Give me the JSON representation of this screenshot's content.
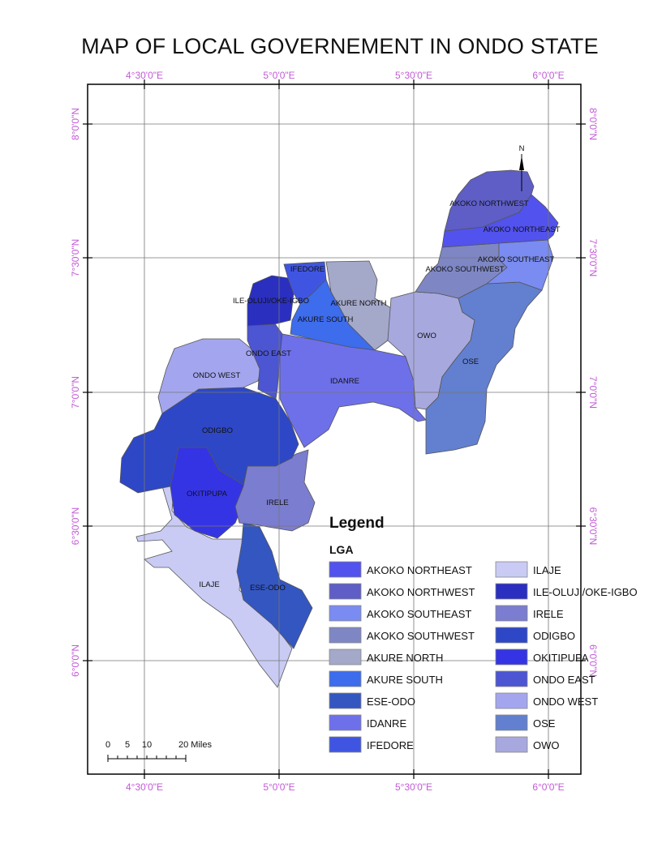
{
  "title": "MAP OF LOCAL GOVERNEMENT IN ONDO STATE",
  "north_arrow": "N",
  "graticule": {
    "lon_labels": [
      "4°30'0\"E",
      "5°0'0\"E",
      "5°30'0\"E",
      "6°0'0\"E"
    ],
    "lat_labels": [
      "8°0'0\"N",
      "7°30'0\"N",
      "7°0'0\"N",
      "6°30'0\"N",
      "6°0'0\"N"
    ]
  },
  "legend": {
    "title": "Legend",
    "subtitle": "LGA",
    "items": [
      {
        "name": "AKOKO NORTHEAST",
        "color": "#5252ee"
      },
      {
        "name": "AKOKO NORTHWEST",
        "color": "#5e5ec6"
      },
      {
        "name": "AKOKO SOUTHEAST",
        "color": "#7a8cf1"
      },
      {
        "name": "AKOKO SOUTHWEST",
        "color": "#7e87c4"
      },
      {
        "name": "AKURE NORTH",
        "color": "#a4a8c9"
      },
      {
        "name": "AKURE SOUTH",
        "color": "#3d6ced"
      },
      {
        "name": "ESE-ODO",
        "color": "#3456c0"
      },
      {
        "name": "IDANRE",
        "color": "#6e70ea"
      },
      {
        "name": "IFEDORE",
        "color": "#3f55e2"
      },
      {
        "name": "ILAJE",
        "color": "#c9cbf4"
      },
      {
        "name": "ILE-OLUJI/OKE-IGBO",
        "color": "#2a2fc0"
      },
      {
        "name": "IRELE",
        "color": "#7b7dd0"
      },
      {
        "name": "ODIGBO",
        "color": "#2d47c6"
      },
      {
        "name": "OKITIPUPA",
        "color": "#3434e4"
      },
      {
        "name": "ONDO EAST",
        "color": "#4c55d2"
      },
      {
        "name": "ONDO WEST",
        "color": "#a3a6ee"
      },
      {
        "name": "OSE",
        "color": "#6280cf"
      },
      {
        "name": "OWO",
        "color": "#a7a8de"
      }
    ]
  },
  "map_labels": {
    "akoko_northwest": "AKOKO NORTHWEST",
    "akoko_northeast": "AKOKO NORTHEAST",
    "akoko_southeast": "AKOKO SOUTHEAST",
    "akoko_southwest": "AKOKO SOUTHWEST",
    "ifedore": "IFEDORE",
    "ile_oluji": "ILE-OLUJI/OKE-IGBO",
    "akure_north": "AKURE NORTH",
    "akure_south": "AKURE SOUTH",
    "owo": "OWO",
    "ose": "OSE",
    "ondo_east": "ONDO EAST",
    "ondo_west": "ONDO WEST",
    "idanre": "IDANRE",
    "odigbo": "ODIGBO",
    "okitipupa": "OKITIPUPA",
    "irele": "IRELE",
    "ilaje": "ILAJE",
    "ese_odo": "ESE-ODO"
  },
  "scale_bar": {
    "labels": [
      "0",
      "5",
      "10",
      "20 Miles"
    ]
  }
}
